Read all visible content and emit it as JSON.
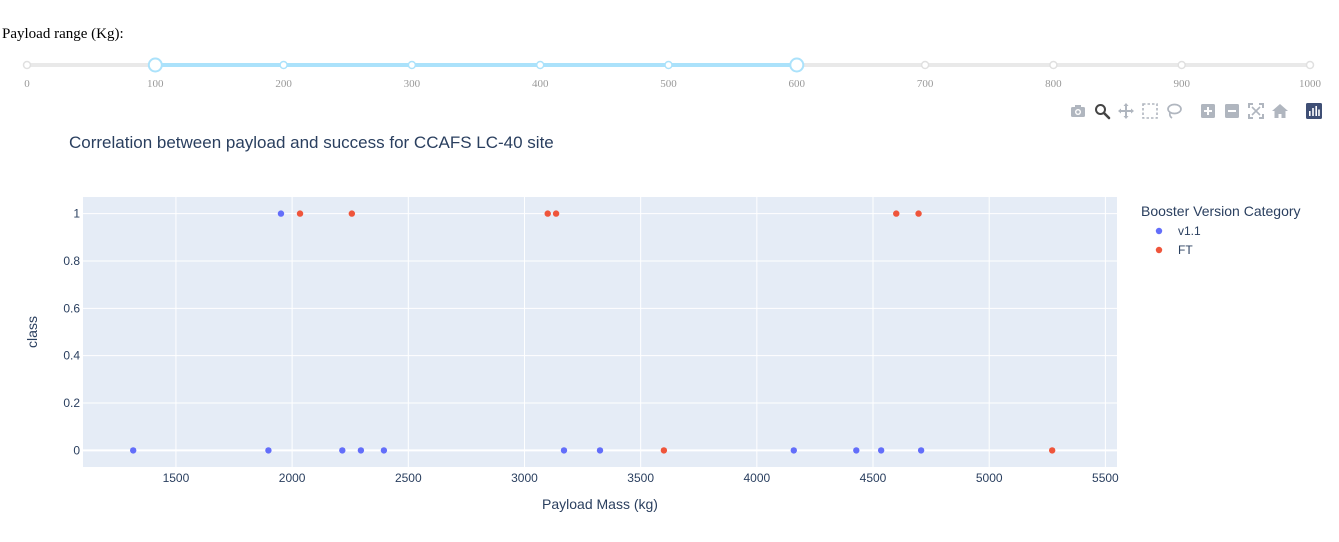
{
  "slider": {
    "label": "Payload range (Kg):",
    "min": 0,
    "max": 1000,
    "marks": [
      "0",
      "100",
      "200",
      "300",
      "400",
      "500",
      "600",
      "700",
      "800",
      "900",
      "1000"
    ],
    "value_low": 100,
    "value_high": 600,
    "track_color": "#e9e9e9",
    "active_color": "#abe2fb"
  },
  "modebar": {
    "buttons": [
      "camera-icon",
      "zoom-icon",
      "pan-icon",
      "box-select-icon",
      "lasso-select-icon",
      "zoom-in-icon",
      "zoom-out-icon",
      "autoscale-icon",
      "reset-axes-icon",
      "plotly-logo-icon"
    ]
  },
  "chart_data": {
    "type": "scatter",
    "title": "Correlation between payload and success for CCAFS LC-40 site",
    "xlabel": "Payload Mass (kg)",
    "ylabel": "class",
    "xlim": [
      1100,
      5550
    ],
    "ylim": [
      -0.07,
      1.07
    ],
    "xticks": [
      1500,
      2000,
      2500,
      3000,
      3500,
      4000,
      4500,
      5000,
      5500
    ],
    "yticks": [
      0,
      0.2,
      0.4,
      0.6,
      0.8,
      1
    ],
    "ytick_labels": [
      "0",
      "0.2",
      "0.4",
      "0.6",
      "0.8",
      "1"
    ],
    "legend_title": "Booster Version Category",
    "legend_position": "right",
    "series": [
      {
        "name": "v1.1",
        "color": "#636efa",
        "x": [
          1316,
          1898,
          1952,
          2216,
          2296,
          2395,
          3170,
          3325,
          4159,
          4428,
          4535,
          4707
        ],
        "y": [
          0,
          0,
          1,
          0,
          0,
          0,
          0,
          0,
          0,
          0,
          0,
          0
        ]
      },
      {
        "name": "FT",
        "color": "#ef553b",
        "x": [
          2034,
          2257,
          3100,
          3136,
          3600,
          4600,
          4696,
          5271
        ],
        "y": [
          1,
          1,
          1,
          1,
          0,
          1,
          1,
          0
        ]
      }
    ]
  }
}
